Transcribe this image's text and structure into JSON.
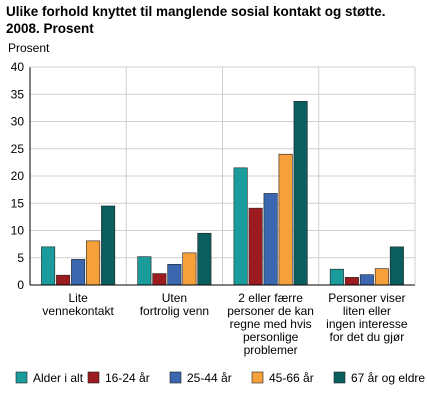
{
  "chart_data": {
    "type": "bar",
    "title_line1": "Ulike forhold knyttet til manglende sosial kontakt og støtte.",
    "title_line2": "2008. Prosent",
    "ylabel": "Prosent",
    "ylim": [
      0,
      40
    ],
    "yticks": [
      0,
      5,
      10,
      15,
      20,
      25,
      30,
      35,
      40
    ],
    "grid": true,
    "legend_placement": "bottom",
    "categories": [
      [
        "Lite",
        "vennekontakt"
      ],
      [
        "Uten",
        "fortrolig venn"
      ],
      [
        "2 eller færre",
        "personer de kan",
        "regne med hvis",
        "personlige",
        "problemer"
      ],
      [
        "Personer viser",
        "liten eller",
        "ingen interesse",
        "for det du gjør"
      ]
    ],
    "series": [
      {
        "name": "Alder i alt",
        "color": "#1a9c9c",
        "values": [
          7.0,
          5.2,
          21.5,
          2.9
        ]
      },
      {
        "name": "16-24 år",
        "color": "#9b1b1f",
        "values": [
          1.8,
          2.1,
          14.1,
          1.4
        ]
      },
      {
        "name": "25-44 år",
        "color": "#3a67b0",
        "values": [
          4.7,
          3.8,
          16.8,
          1.9
        ]
      },
      {
        "name": "45-66 år",
        "color": "#f5a03a",
        "values": [
          8.1,
          5.9,
          24.0,
          3.0
        ]
      },
      {
        "name": "67 år og eldre",
        "color": "#0b5e5e",
        "values": [
          14.5,
          9.5,
          33.7,
          7.0
        ]
      }
    ]
  }
}
